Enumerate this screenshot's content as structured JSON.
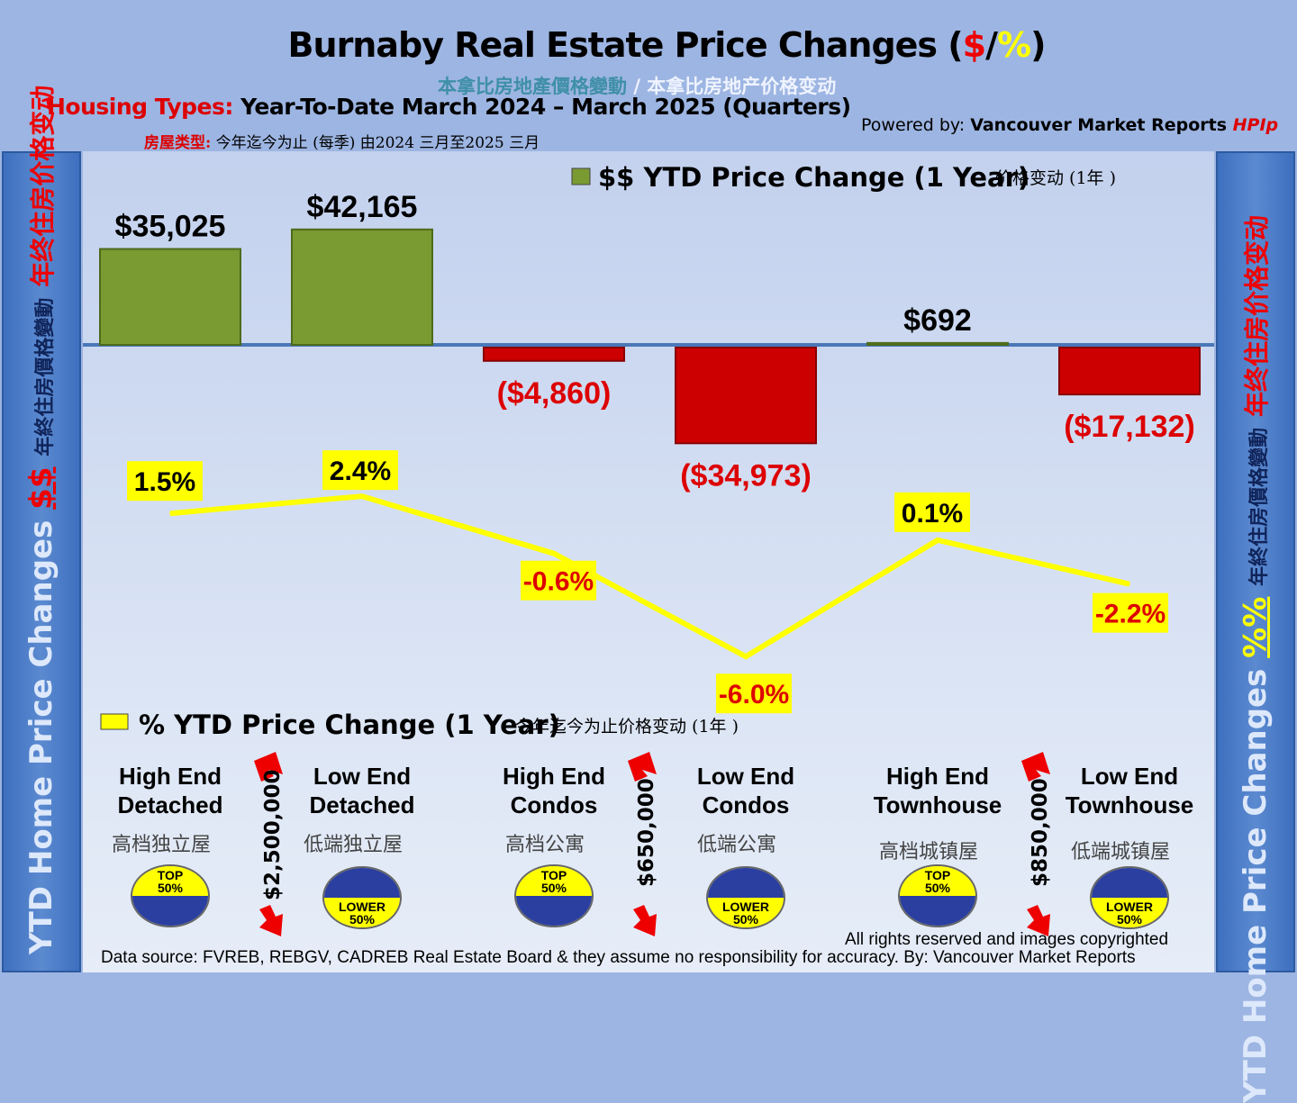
{
  "header": {
    "title_main": "Burnaby Real Estate Price Changes (",
    "title_dollar": "$",
    "title_slash": "/",
    "title_pct": "%",
    "title_end": ")",
    "subtitle_trad": "本拿比房地產價格變動",
    "subtitle_simp": " / 本拿比房地产价格变动",
    "housing_label": "Housing Types:",
    "housing_period": " Year-To-Date March 2024 – March 2025 (Quarters)",
    "housing_cn_label": "房屋类型:",
    "housing_cn": " 今年迄今为止  (每季) 由2024 三月至2025 三月",
    "powered_label": "Powered by: ",
    "powered_name": "Vancouver Market Reports ",
    "powered_brand": "HPIp"
  },
  "side_left": {
    "en": "YTD Home Price Changes ",
    "sym": "$$",
    "cn_trad": "年終住房價格變動",
    "cn_simp": "年终住房价格变动"
  },
  "side_right": {
    "en": "YTD Home Price  Changes ",
    "sym": "%%",
    "cn_trad": "年終住房價格變動",
    "cn_simp": "年终住房价格变动"
  },
  "chart_data": {
    "type": "bar+line",
    "categories": [
      "High End Detached",
      "Low End Detached",
      "High End Condos",
      "Low End Condos",
      "High End Townhouse",
      "Low End Townhouse"
    ],
    "series": [
      {
        "name": "$$ YTD Price Change (1 Year)",
        "type": "bar",
        "values": [
          35025,
          42165,
          -4860,
          -34973,
          692,
          -17132
        ],
        "labels": [
          "$35,025",
          "$42,165",
          "($4,860)",
          "($34,973)",
          "$692",
          "($17,132)"
        ]
      },
      {
        "name": "% YTD Price Change (1 Year)",
        "type": "line",
        "values": [
          1.5,
          2.4,
          -0.6,
          -6.0,
          0.1,
          -2.2
        ],
        "labels": [
          "1.5%",
          "2.4%",
          "-0.6%",
          "-6.0%",
          "0.1%",
          "-2.2%"
        ]
      }
    ],
    "legend_bar": "$$ YTD Price Change (1 Year)",
    "legend_bar_cn": "价格变动 (1年 )",
    "legend_line": "% YTD Price Change (1 Year)",
    "legend_line_cn": "今年迄今为止价格变动 (1年 )",
    "colors": {
      "pos": "#7a9a32",
      "neg": "#cc0000",
      "line": "#ffff00"
    }
  },
  "categories": [
    {
      "l1": "High End",
      "l2": "Detached",
      "cn": "高档独立屋",
      "ball": "top"
    },
    {
      "l1": "Low End",
      "l2": "Detached",
      "cn": "低端独立屋",
      "ball": "lower"
    },
    {
      "l1": "High End",
      "l2": "Condos",
      "cn": "高档公寓",
      "ball": "top"
    },
    {
      "l1": "Low End",
      "l2": "Condos",
      "cn": "低端公寓",
      "ball": "lower"
    },
    {
      "l1": "High End",
      "l2": "Townhouse",
      "cn": "高档城镇屋",
      "ball": "top"
    },
    {
      "l1": "Low End",
      "l2": "Townhouse",
      "cn": "低端城镇屋",
      "ball": "lower"
    }
  ],
  "ball": {
    "top": "TOP",
    "lower": "LOWER",
    "pct": "50%"
  },
  "thresholds": [
    "$2,500,000",
    "$650,000",
    "$850,000"
  ],
  "footer": {
    "rights": "All rights reserved and  images copyrighted",
    "source": "Data source: FVREB, REBGV, CADREB Real Estate Board & they assume no responsibility for accuracy. By: Vancouver Market Reports"
  }
}
